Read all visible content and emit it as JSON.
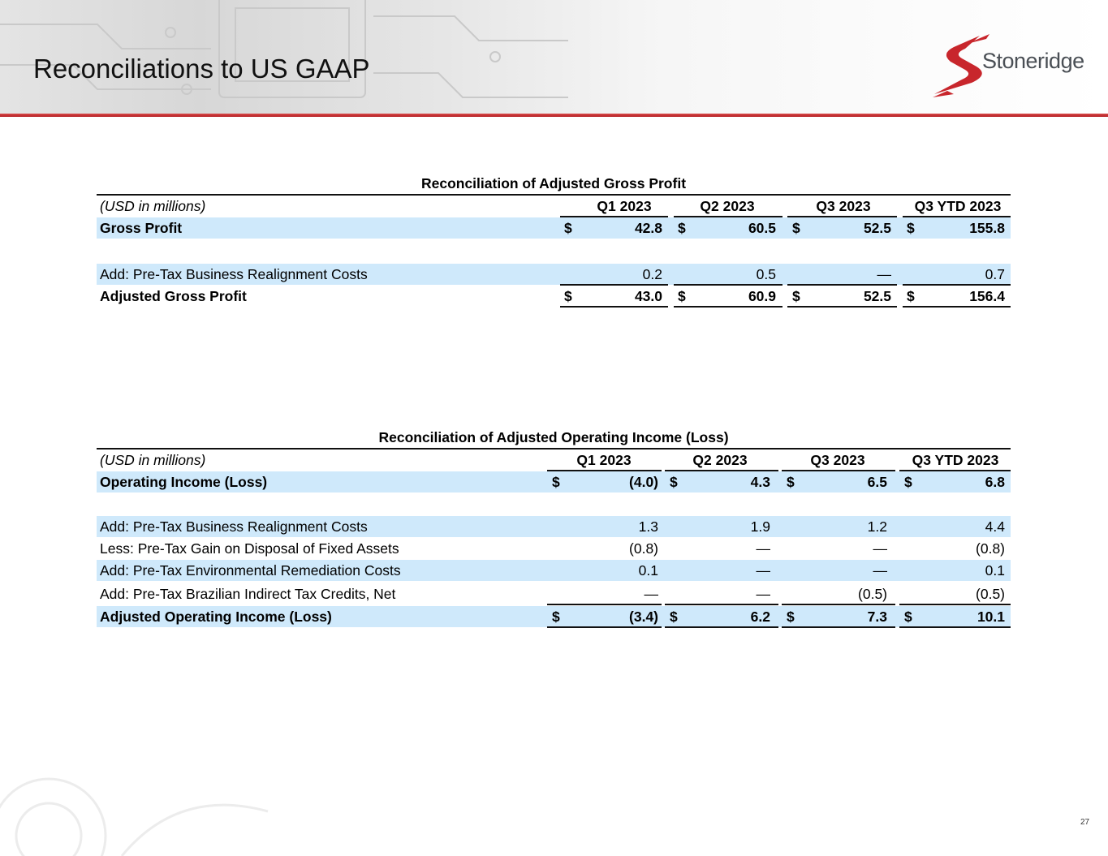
{
  "page": {
    "title": "Reconciliations to US GAAP",
    "brand": "Stoneridge",
    "page_number": "27",
    "colors": {
      "accent_red": "#c8262c",
      "row_highlight": "#cfe9fb",
      "logo_gray": "#4a4f55"
    }
  },
  "tables": {
    "gross": {
      "caption": "Reconciliation of Adjusted Gross Profit",
      "unit_label": "(USD in millions)",
      "columns": [
        "Q1 2023",
        "Q2 2023",
        "Q3 2023",
        "Q3 YTD 2023"
      ],
      "currency": "$",
      "rows": [
        {
          "label": "Gross Profit",
          "values": [
            "42.8",
            "60.5",
            "52.5",
            "155.8"
          ]
        },
        {
          "label": "Add: Pre-Tax Business Realignment Costs",
          "values": [
            "0.2",
            "0.5",
            "—",
            "0.7"
          ]
        },
        {
          "label": "Adjusted Gross Profit",
          "values": [
            "43.0",
            "60.9",
            "52.5",
            "156.4"
          ]
        }
      ]
    },
    "operating": {
      "caption": "Reconciliation of Adjusted Operating Income (Loss)",
      "unit_label": "(USD in millions)",
      "columns": [
        "Q1 2023",
        "Q2 2023",
        "Q3 2023",
        "Q3 YTD 2023"
      ],
      "currency": "$",
      "rows": [
        {
          "label": "Operating Income (Loss)",
          "values": [
            "(4.0)",
            "4.3",
            "6.5",
            "6.8"
          ]
        },
        {
          "label": "Add: Pre-Tax Business Realignment Costs",
          "values": [
            "1.3",
            "1.9",
            "1.2",
            "4.4"
          ]
        },
        {
          "label": "Less: Pre-Tax Gain on Disposal of Fixed Assets",
          "values": [
            "(0.8)",
            "—",
            "—",
            "(0.8)"
          ]
        },
        {
          "label": "Add: Pre-Tax Environmental Remediation Costs",
          "values": [
            "0.1",
            "—",
            "—",
            "0.1"
          ]
        },
        {
          "label": "Add: Pre-Tax Brazilian Indirect Tax Credits, Net",
          "values": [
            "—",
            "—",
            "(0.5)",
            "(0.5)"
          ]
        },
        {
          "label": "Adjusted Operating Income (Loss)",
          "values": [
            "(3.4)",
            "6.2",
            "7.3",
            "10.1"
          ]
        }
      ]
    }
  }
}
